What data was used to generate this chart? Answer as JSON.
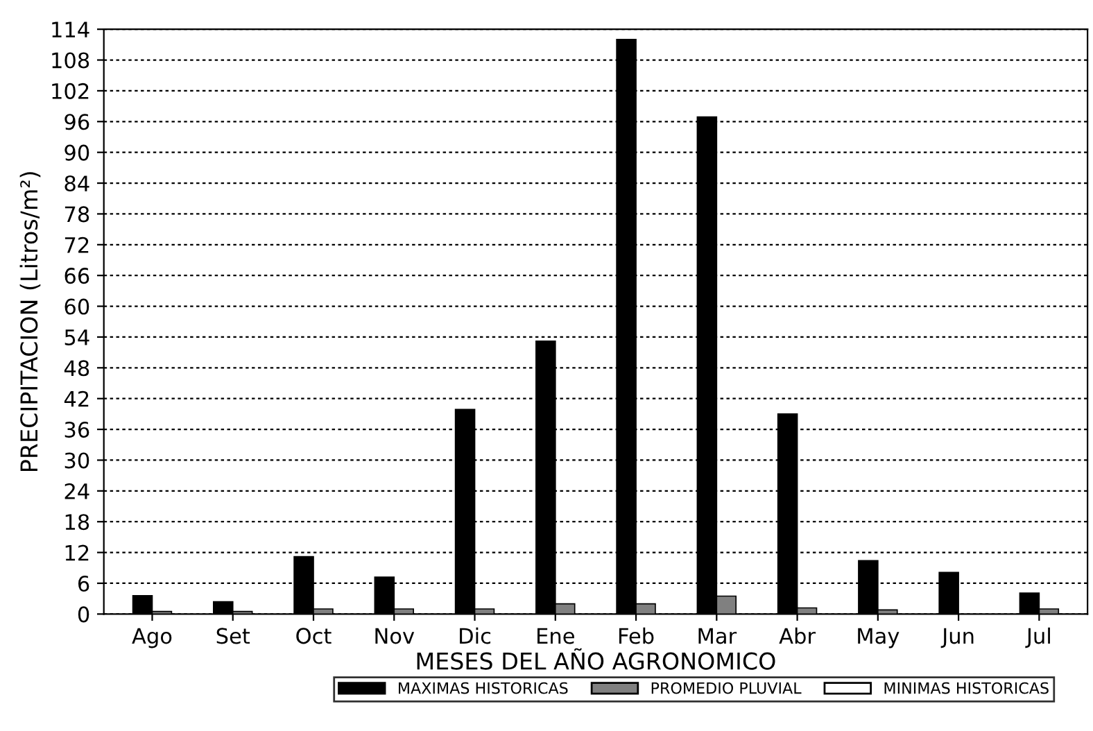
{
  "chart_data": {
    "type": "bar",
    "xlabel": "MESES DEL AÑO AGRONOMICO",
    "ylabel": "PRECIPITACION (Litros/m²)",
    "categories": [
      "Ago",
      "Set",
      "Oct",
      "Nov",
      "Dic",
      "Ene",
      "Feb",
      "Mar",
      "Abr",
      "May",
      "Jun",
      "Jul"
    ],
    "series": [
      {
        "name": "MAXIMAS HISTORICAS",
        "color": "#000000",
        "values": [
          3.6,
          2.4,
          11.2,
          7.2,
          39.9,
          53.2,
          112,
          96.9,
          39,
          10.4,
          8.1,
          4.1
        ]
      },
      {
        "name": "PROMEDIO PLUVIAL",
        "color": "#808080",
        "values": [
          0.5,
          0.5,
          1,
          1,
          1,
          2,
          2,
          3.5,
          1.2,
          0.8,
          0,
          1
        ]
      },
      {
        "name": "MINIMAS HISTORICAS",
        "color": "#ffffff",
        "values": [
          0,
          0,
          0,
          0,
          0,
          0,
          0,
          0,
          0,
          0,
          0,
          0
        ]
      }
    ],
    "ylim": [
      0,
      114
    ],
    "yticks": [
      0,
      6,
      12,
      18,
      24,
      30,
      36,
      42,
      48,
      54,
      60,
      66,
      72,
      78,
      84,
      90,
      96,
      102,
      108,
      114
    ],
    "grid": "y",
    "legend": "bottom"
  }
}
